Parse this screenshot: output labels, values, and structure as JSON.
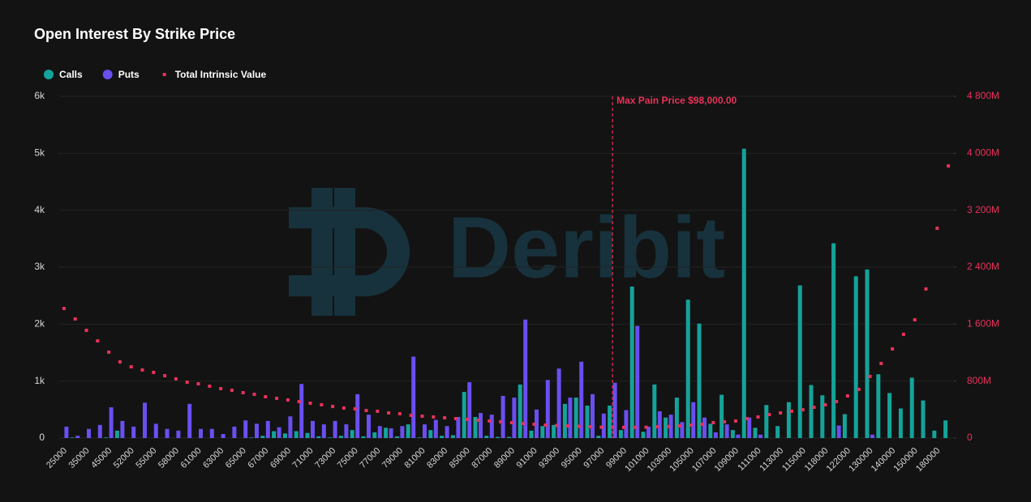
{
  "chart_data": {
    "type": "bar",
    "title": "Open Interest By Strike Price",
    "watermark": "Deribit",
    "categories": [
      "25000",
      null,
      "35000",
      null,
      "45000",
      null,
      "52000",
      null,
      "55000",
      null,
      "58000",
      null,
      "61000",
      null,
      "63000",
      null,
      "65000",
      null,
      "67000",
      null,
      "69000",
      null,
      "71000",
      null,
      "73000",
      null,
      "75000",
      null,
      "77000",
      null,
      "79000",
      null,
      "81000",
      null,
      "83000",
      null,
      "85000",
      null,
      "87000",
      null,
      "89000",
      null,
      "91000",
      null,
      "93000",
      null,
      "95000",
      null,
      "97000",
      null,
      "99000",
      null,
      "101000",
      null,
      "103000",
      null,
      "105000",
      null,
      "107000",
      null,
      "109000",
      null,
      "111000",
      null,
      "113000",
      null,
      "115000",
      null,
      "118000",
      null,
      "122000",
      null,
      "130000",
      null,
      "140000",
      null,
      "150000",
      null,
      "180000",
      null
    ],
    "series": [
      {
        "name": "Calls",
        "type": "bar",
        "color": "#14a39a",
        "values": [
          0,
          10,
          0,
          0,
          10,
          130,
          0,
          0,
          0,
          0,
          0,
          0,
          0,
          0,
          0,
          0,
          0,
          10,
          40,
          120,
          80,
          120,
          90,
          30,
          10,
          40,
          140,
          30,
          100,
          180,
          30,
          240,
          10,
          140,
          40,
          50,
          810,
          370,
          40,
          20,
          20,
          940,
          130,
          210,
          230,
          600,
          710,
          570,
          40,
          570,
          140,
          2660,
          110,
          940,
          360,
          710,
          2430,
          2010,
          250,
          760,
          140,
          5080,
          180,
          580,
          210,
          630,
          2680,
          930,
          750,
          3420,
          420,
          2840,
          2960,
          1120,
          790,
          520,
          1060,
          660,
          130,
          310
        ]
      },
      {
        "name": "Puts",
        "type": "bar",
        "color": "#6a4ff0",
        "values": [
          200,
          40,
          160,
          230,
          540,
          300,
          200,
          620,
          250,
          160,
          130,
          600,
          160,
          160,
          70,
          200,
          310,
          250,
          300,
          190,
          380,
          950,
          300,
          240,
          300,
          240,
          770,
          410,
          210,
          170,
          210,
          1430,
          240,
          320,
          210,
          370,
          980,
          440,
          410,
          740,
          710,
          2080,
          500,
          1020,
          1220,
          710,
          1340,
          770,
          430,
          970,
          490,
          1970,
          200,
          470,
          410,
          280,
          630,
          360,
          100,
          240,
          60,
          360,
          60,
          0,
          0,
          0,
          0,
          0,
          0,
          220,
          0,
          0,
          60,
          0,
          0,
          0,
          0,
          0,
          0,
          0
        ]
      },
      {
        "name": "Total Intrinsic Value",
        "type": "scatter",
        "axis": "y2",
        "color": "#e8325a",
        "values": [
          1820,
          1673,
          1513,
          1365,
          1206,
          1070,
          1001,
          956,
          922,
          876,
          831,
          785,
          762,
          728,
          694,
          671,
          637,
          614,
          580,
          558,
          535,
          512,
          489,
          467,
          444,
          421,
          410,
          387,
          376,
          353,
          341,
          319,
          307,
          296,
          284,
          273,
          262,
          250,
          239,
          228,
          216,
          205,
          193,
          182,
          176,
          171,
          165,
          159,
          153,
          148,
          150,
          150,
          152,
          159,
          162,
          171,
          182,
          193,
          216,
          228,
          239,
          273,
          296,
          330,
          353,
          376,
          398,
          432,
          467,
          512,
          592,
          683,
          865,
          1047,
          1252,
          1457,
          1661,
          2094,
          2947,
          3823
        ]
      }
    ],
    "ylim": [
      0,
      6000
    ],
    "yticks": [
      0,
      {
        "value": 1000,
        "label": "1k"
      },
      {
        "value": 2000,
        "label": "2k"
      },
      {
        "value": 3000,
        "label": "3k"
      },
      {
        "value": 4000,
        "label": "4k"
      },
      {
        "value": 5000,
        "label": "5k"
      },
      {
        "value": 6000,
        "label": "6k"
      }
    ],
    "y2lim": [
      0,
      4800
    ],
    "y2ticks": [
      0,
      {
        "value": 800,
        "label": "800M"
      },
      {
        "value": 1600,
        "label": "1 600M"
      },
      {
        "value": 2400,
        "label": "2 400M"
      },
      {
        "value": 3200,
        "label": "3 200M"
      },
      {
        "value": 4000,
        "label": "4 000M"
      },
      {
        "value": 4800,
        "label": "4 800M"
      }
    ],
    "grid": true,
    "annotation": {
      "text": "Max Pain Price $98,000.00",
      "value": 98000,
      "color": "#e8325a"
    }
  }
}
